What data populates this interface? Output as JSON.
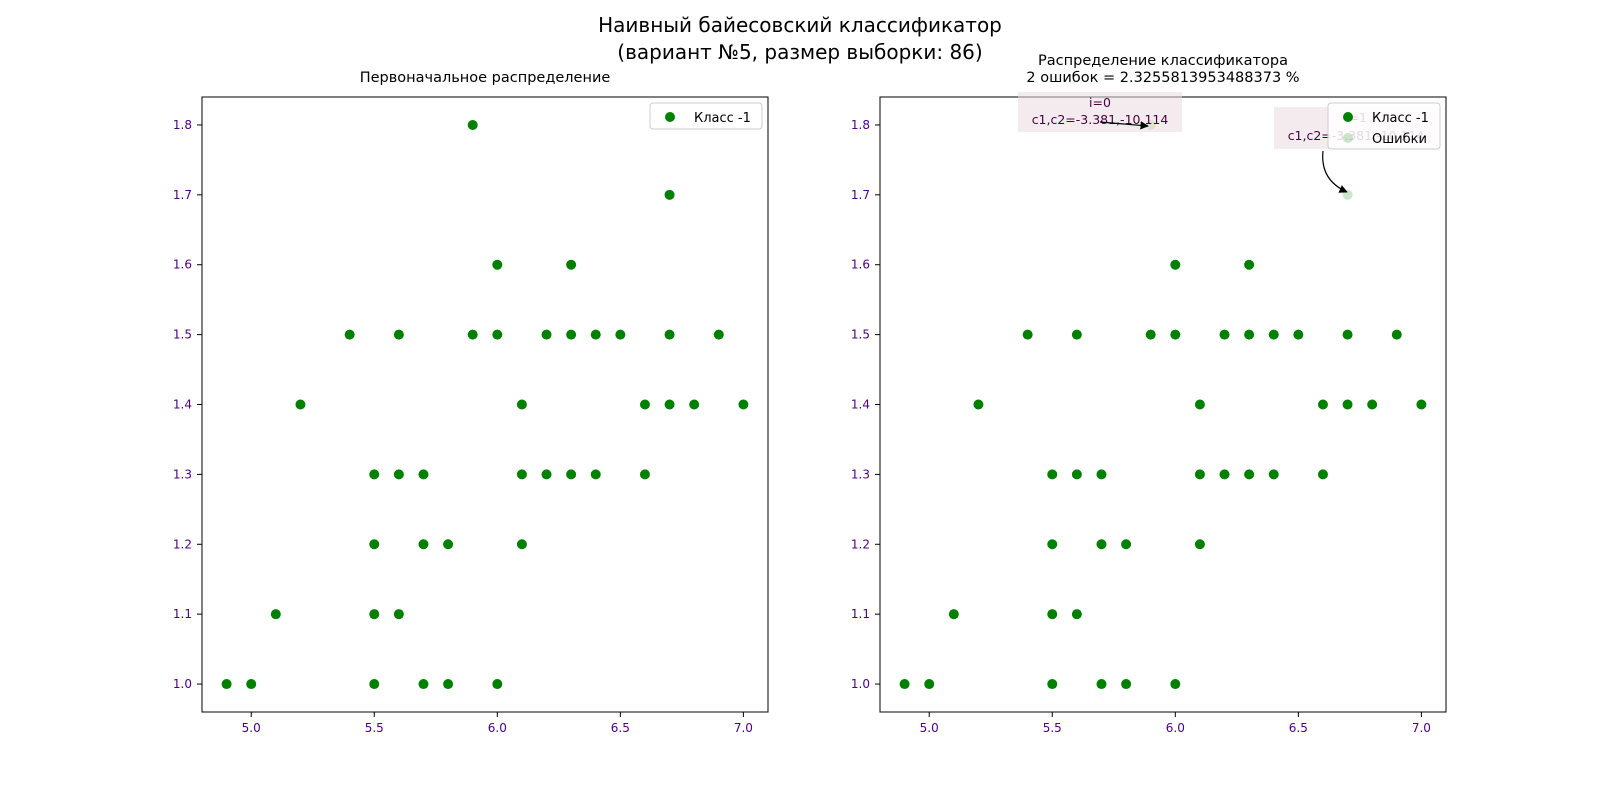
{
  "figure": {
    "suptitle_line1": "Наивный байесовский классификатор",
    "suptitle_line2": "(вариант №5, размер выборки: 86)"
  },
  "colors": {
    "points": "#008000",
    "ticks": "#4b0082",
    "annotation_box": "#eadbe0",
    "annotation_text": "#4b0040"
  },
  "chart_data": [
    {
      "type": "scatter",
      "title": "Первоначальное распределение",
      "xlabel": "",
      "ylabel": "",
      "xlim": [
        4.8,
        7.1
      ],
      "ylim": [
        0.96,
        1.84
      ],
      "x_ticks": [
        "5.0",
        "5.5",
        "6.0",
        "6.5",
        "7.0"
      ],
      "y_ticks": [
        "1.0",
        "1.1",
        "1.2",
        "1.3",
        "1.4",
        "1.5",
        "1.6",
        "1.7",
        "1.8"
      ],
      "legend": "top-right",
      "series": [
        {
          "name": "Класс -1",
          "points": [
            [
              4.9,
              1.0
            ],
            [
              5.0,
              1.0
            ],
            [
              5.5,
              1.0
            ],
            [
              5.7,
              1.0
            ],
            [
              5.8,
              1.0
            ],
            [
              6.0,
              1.0
            ],
            [
              5.1,
              1.1
            ],
            [
              5.5,
              1.1
            ],
            [
              5.6,
              1.1
            ],
            [
              5.5,
              1.2
            ],
            [
              5.7,
              1.2
            ],
            [
              5.8,
              1.2
            ],
            [
              6.1,
              1.2
            ],
            [
              5.5,
              1.3
            ],
            [
              5.6,
              1.3
            ],
            [
              5.7,
              1.3
            ],
            [
              6.1,
              1.3
            ],
            [
              6.2,
              1.3
            ],
            [
              6.3,
              1.3
            ],
            [
              6.4,
              1.3
            ],
            [
              6.6,
              1.3
            ],
            [
              5.2,
              1.4
            ],
            [
              6.1,
              1.4
            ],
            [
              6.6,
              1.4
            ],
            [
              6.7,
              1.4
            ],
            [
              6.8,
              1.4
            ],
            [
              7.0,
              1.4
            ],
            [
              5.4,
              1.5
            ],
            [
              5.6,
              1.5
            ],
            [
              5.9,
              1.5
            ],
            [
              6.0,
              1.5
            ],
            [
              6.2,
              1.5
            ],
            [
              6.3,
              1.5
            ],
            [
              6.4,
              1.5
            ],
            [
              6.5,
              1.5
            ],
            [
              6.7,
              1.5
            ],
            [
              6.9,
              1.5
            ],
            [
              6.0,
              1.6
            ],
            [
              6.3,
              1.6
            ],
            [
              6.7,
              1.7
            ],
            [
              5.9,
              1.8
            ]
          ]
        }
      ]
    },
    {
      "type": "scatter",
      "title": "Распределение классификатора",
      "subtitle": "2 ошибок = 2.3255813953488373 %",
      "xlabel": "",
      "ylabel": "",
      "xlim": [
        4.8,
        7.1
      ],
      "ylim": [
        0.96,
        1.84
      ],
      "x_ticks": [
        "5.0",
        "5.5",
        "6.0",
        "6.5",
        "7.0"
      ],
      "y_ticks": [
        "1.0",
        "1.1",
        "1.2",
        "1.3",
        "1.4",
        "1.5",
        "1.6",
        "1.7",
        "1.8"
      ],
      "legend": "top-right",
      "series": [
        {
          "name": "Класс -1",
          "points": [
            [
              4.9,
              1.0
            ],
            [
              5.0,
              1.0
            ],
            [
              5.5,
              1.0
            ],
            [
              5.7,
              1.0
            ],
            [
              5.8,
              1.0
            ],
            [
              6.0,
              1.0
            ],
            [
              5.1,
              1.1
            ],
            [
              5.5,
              1.1
            ],
            [
              5.6,
              1.1
            ],
            [
              5.5,
              1.2
            ],
            [
              5.7,
              1.2
            ],
            [
              5.8,
              1.2
            ],
            [
              6.1,
              1.2
            ],
            [
              5.5,
              1.3
            ],
            [
              5.6,
              1.3
            ],
            [
              5.7,
              1.3
            ],
            [
              6.1,
              1.3
            ],
            [
              6.2,
              1.3
            ],
            [
              6.3,
              1.3
            ],
            [
              6.4,
              1.3
            ],
            [
              6.6,
              1.3
            ],
            [
              5.2,
              1.4
            ],
            [
              6.1,
              1.4
            ],
            [
              6.6,
              1.4
            ],
            [
              6.7,
              1.4
            ],
            [
              6.8,
              1.4
            ],
            [
              7.0,
              1.4
            ],
            [
              5.4,
              1.5
            ],
            [
              5.6,
              1.5
            ],
            [
              5.9,
              1.5
            ],
            [
              6.0,
              1.5
            ],
            [
              6.2,
              1.5
            ],
            [
              6.3,
              1.5
            ],
            [
              6.4,
              1.5
            ],
            [
              6.5,
              1.5
            ],
            [
              6.7,
              1.5
            ],
            [
              6.9,
              1.5
            ],
            [
              6.0,
              1.6
            ],
            [
              6.3,
              1.6
            ]
          ]
        },
        {
          "name": "Ошибки",
          "points": [
            [
              5.9,
              1.8
            ],
            [
              6.7,
              1.7
            ]
          ]
        }
      ],
      "annotations": [
        {
          "line1": "i=0",
          "line2": "c1,c2=-3.381,-10.114",
          "target": [
            5.9,
            1.8
          ]
        },
        {
          "line1": "i=1",
          "line2": "c1,c2=-3.381,-10.114",
          "target": [
            6.7,
            1.7
          ]
        }
      ]
    }
  ]
}
